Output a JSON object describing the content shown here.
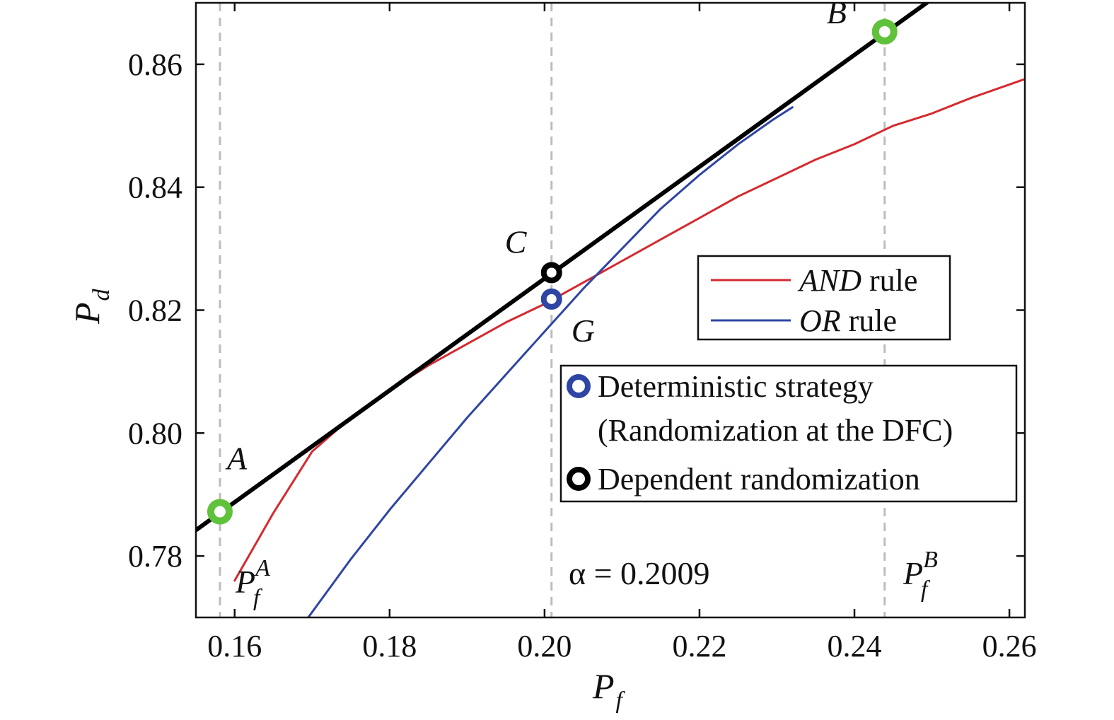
{
  "chart_data": {
    "type": "line",
    "title": "",
    "xlabel": "P",
    "xlabel_sub": "f",
    "ylabel": "P",
    "ylabel_sub": "d",
    "xlim": [
      0.155,
      0.262
    ],
    "ylim": [
      0.77,
      0.87
    ],
    "x_ticks": [
      0.16,
      0.18,
      0.2,
      0.22,
      0.24,
      0.26
    ],
    "x_tick_labels": [
      "0.16",
      "0.18",
      "0.20",
      "0.22",
      "0.24",
      "0.26"
    ],
    "y_ticks": [
      0.78,
      0.8,
      0.82,
      0.84,
      0.86
    ],
    "y_tick_labels": [
      "0.78",
      "0.80",
      "0.82",
      "0.84",
      "0.86"
    ],
    "grid": false,
    "series": [
      {
        "name": "AND rule",
        "color": "#d42a2f",
        "x": [
          0.16,
          0.165,
          0.17,
          0.175,
          0.18,
          0.185,
          0.19,
          0.195,
          0.2,
          0.205,
          0.21,
          0.215,
          0.22,
          0.225,
          0.23,
          0.235,
          0.24,
          0.245,
          0.25,
          0.255,
          0.2618
        ],
        "y": [
          0.776,
          0.787,
          0.797,
          0.8025,
          0.807,
          0.811,
          0.8145,
          0.818,
          0.821,
          0.8245,
          0.828,
          0.8315,
          0.835,
          0.8385,
          0.8415,
          0.8445,
          0.847,
          0.85,
          0.852,
          0.8545,
          0.8575
        ]
      },
      {
        "name": "OR rule",
        "color": "#2f45a4",
        "x": [
          0.1695,
          0.175,
          0.18,
          0.185,
          0.19,
          0.195,
          0.2,
          0.205,
          0.21,
          0.215,
          0.22,
          0.225,
          0.2295,
          0.232
        ],
        "y": [
          0.77,
          0.7795,
          0.7875,
          0.795,
          0.8025,
          0.8095,
          0.8165,
          0.8235,
          0.83,
          0.8365,
          0.842,
          0.847,
          0.851,
          0.853
        ]
      },
      {
        "name": "Dependent randomization line",
        "color": "#000000",
        "x": [
          0.155,
          0.2502
        ],
        "y": [
          0.7842,
          0.8708
        ]
      }
    ],
    "points": [
      {
        "label": "A",
        "x": 0.1581,
        "y": 0.7872,
        "style": "green"
      },
      {
        "label": "B",
        "x": 0.2439,
        "y": 0.8653,
        "style": "green"
      },
      {
        "label": "C",
        "x": 0.2009,
        "y": 0.8261,
        "style": "black"
      },
      {
        "label": "G",
        "x": 0.2009,
        "y": 0.8218,
        "style": "blue"
      }
    ],
    "vlines": [
      0.1581,
      0.2009,
      0.2439
    ],
    "annotations": {
      "pfa_main": "P",
      "pfa_sub": "f",
      "pfa_sup": "A",
      "alpha": "α = 0.2009",
      "pfb_main": "P",
      "pfb_sub": "f",
      "pfb_sup": "B"
    },
    "legend1": {
      "position": "right-middle",
      "entries": [
        {
          "ital": "AND",
          "text": " rule",
          "color": "#d42a2f"
        },
        {
          "ital": "OR",
          "text": " rule",
          "color": "#2f45a4"
        }
      ]
    },
    "legend2": {
      "position": "lower-right",
      "entries": [
        {
          "line1": "Deterministic strategy",
          "line2": "(Randomization at the DFC)",
          "marker": "blue"
        },
        {
          "line1": "Dependent randomization",
          "marker": "black"
        }
      ]
    },
    "colors": {
      "green": "#5fc23a",
      "blue": "#2f45a4",
      "black": "#000000",
      "vline": "#bdbdbd"
    }
  }
}
